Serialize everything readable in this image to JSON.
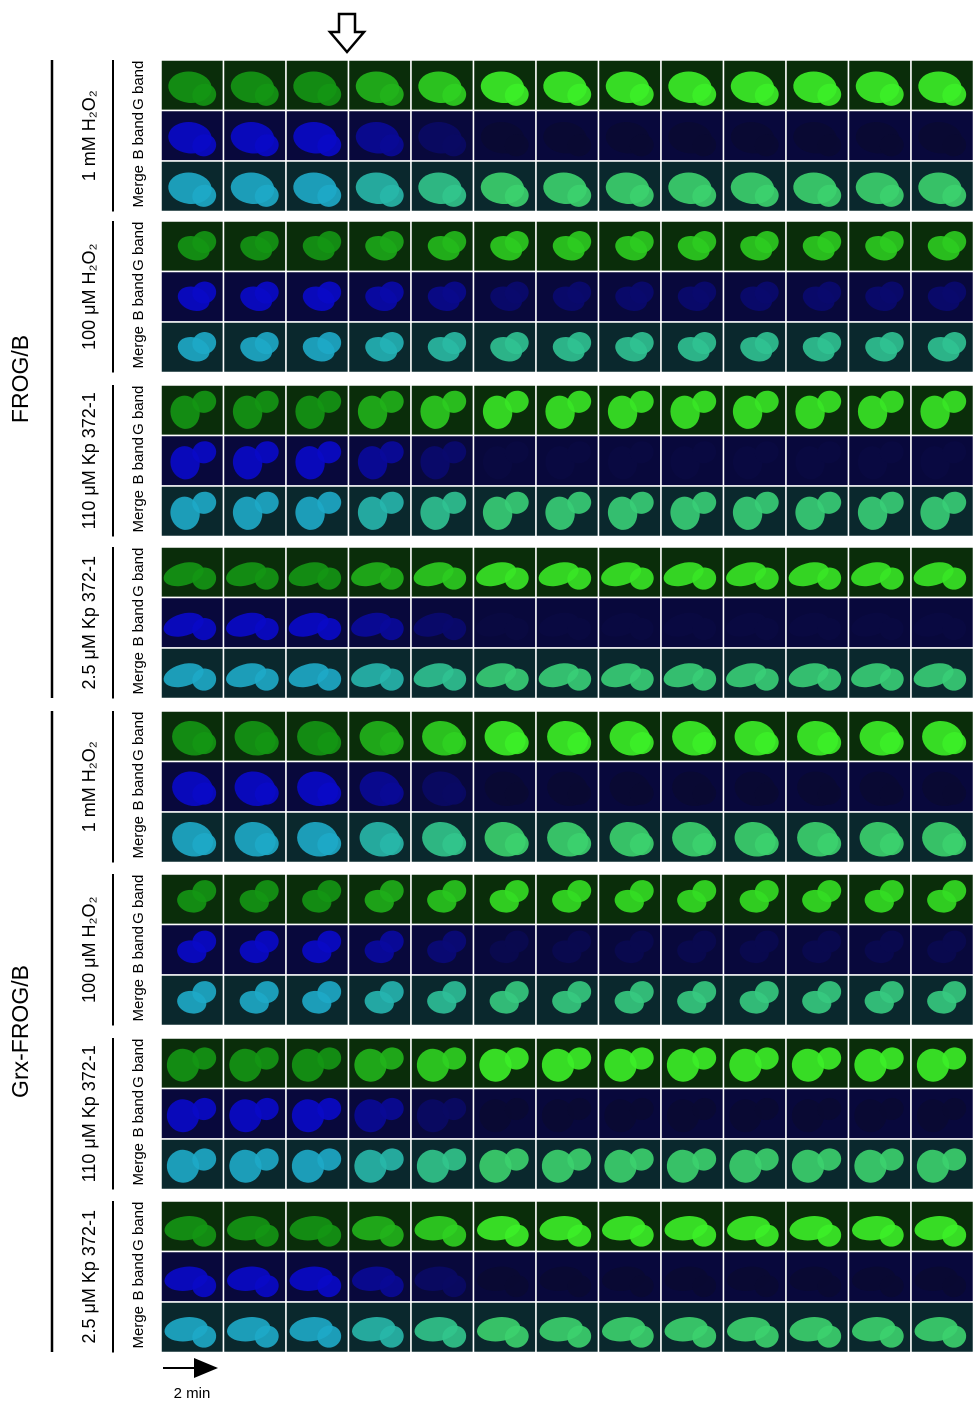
{
  "groups": [
    {
      "label": "FROG/B",
      "conditions": [
        {
          "label": "1 mM H₂O₂",
          "channels": [
            "G band",
            "B band",
            "Merge"
          ]
        },
        {
          "label": "100 μM H₂O₂",
          "channels": [
            "G band",
            "B band",
            "Merge"
          ]
        },
        {
          "label": "110 μM Kp 372-1",
          "channels": [
            "G band",
            "B band",
            "Merge"
          ]
        },
        {
          "label": "2.5 μM Kp 372-1",
          "channels": [
            "G band",
            "B band",
            "Merge"
          ]
        }
      ]
    },
    {
      "label": "Grx-FROG/B",
      "conditions": [
        {
          "label": "1 mM H₂O₂",
          "channels": [
            "G band",
            "B band",
            "Merge"
          ]
        },
        {
          "label": "100 μM H₂O₂",
          "channels": [
            "G band",
            "B band",
            "Merge"
          ]
        },
        {
          "label": "110 μM Kp 372-1",
          "channels": [
            "G band",
            "B band",
            "Merge"
          ]
        },
        {
          "label": "2.5 μM Kp 372-1",
          "channels": [
            "G band",
            "B band",
            "Merge"
          ]
        }
      ]
    }
  ],
  "time_scale": {
    "label": "2 min"
  }
}
